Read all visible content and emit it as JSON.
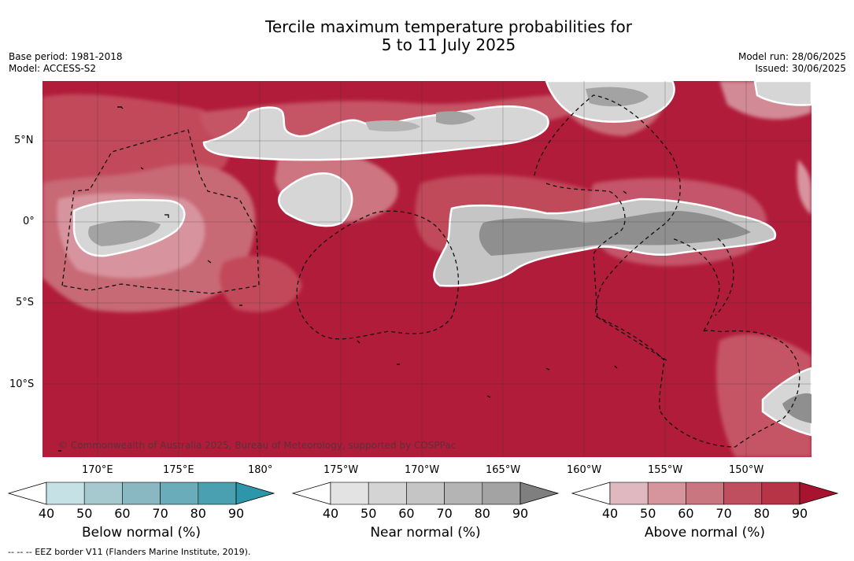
{
  "title": {
    "line1": "Tercile maximum temperature probabilities for",
    "line2": "5 to 11 July 2025"
  },
  "meta": {
    "base_period": "Base period: 1981-2018",
    "model": "Model: ACCESS-S2",
    "model_run": "Model run: 28/06/2025",
    "issued": "Issued: 30/06/2025"
  },
  "map": {
    "lat_labels": [
      "5°N",
      "0°",
      "5°S",
      "10°S"
    ],
    "lon_labels": [
      "170°E",
      "175°E",
      "180°",
      "175°W",
      "170°W",
      "165°W",
      "160°W",
      "155°W",
      "150°W"
    ],
    "copyright": "© Commonwealth of Australia 2025, Bureau of Meteorology, supported by COSPPac",
    "colors": {
      "above_dominant": "#b11c3a",
      "near_light": "#d6d6d6",
      "near_dark": "#8f8f8f"
    }
  },
  "colorbars": [
    {
      "name": "below",
      "label": "Below normal (%)",
      "ticks": [
        "40",
        "50",
        "60",
        "70",
        "80",
        "90"
      ],
      "colors": [
        "#c6e1e6",
        "#a6c9cf",
        "#8ab8c2",
        "#6aacb9",
        "#4aa0b0",
        "#2e96ab"
      ]
    },
    {
      "name": "near",
      "label": "Near normal (%)",
      "ticks": [
        "40",
        "50",
        "60",
        "70",
        "80",
        "90"
      ],
      "colors": [
        "#e3e3e3",
        "#d4d4d4",
        "#c5c5c5",
        "#b4b4b4",
        "#a3a3a3",
        "#7f7f7f"
      ]
    },
    {
      "name": "above",
      "label": "Above normal (%)",
      "ticks": [
        "40",
        "50",
        "60",
        "70",
        "80",
        "90"
      ],
      "colors": [
        "#e0b8bf",
        "#d6949d",
        "#c97680",
        "#bf4e5e",
        "#b73447",
        "#a8142f"
      ]
    }
  ],
  "footer": {
    "eez_legend": "--  --  -- EEZ border V11 (Flanders Marine Institute, 2019)."
  }
}
